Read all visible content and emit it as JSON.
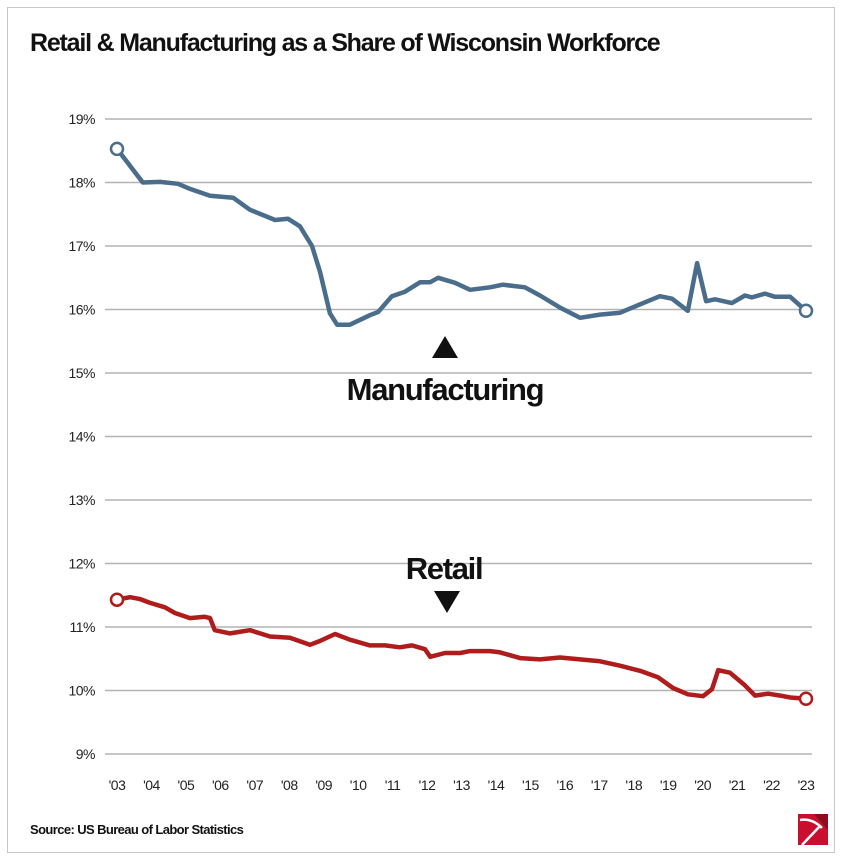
{
  "chart_data": {
    "type": "line",
    "title": "Retail & Manufacturing as a Share of Wisconsin Workforce",
    "source": "Source: US Bureau of Labor Statistics",
    "ylim": [
      9,
      19
    ],
    "xlim": [
      2003,
      2023
    ],
    "yticks": [
      "9%",
      "10%",
      "11%",
      "12%",
      "13%",
      "14%",
      "15%",
      "16%",
      "17%",
      "18%",
      "19%"
    ],
    "xticks": [
      "'03",
      "'04",
      "'05",
      "'06",
      "'07",
      "'08",
      "'09",
      "'10",
      "'11",
      "'12",
      "'13",
      "'14",
      "'15",
      "'16",
      "'17",
      "'18",
      "'19",
      "'20",
      "'21",
      "'22",
      "'23"
    ],
    "grid": "horizontal",
    "annotations": {
      "manufacturing": "Manufacturing",
      "retail": "Retail"
    },
    "series": [
      {
        "name": "Manufacturing",
        "color": "#4a6d8c",
        "x": [
          2003.0,
          2003.75,
          2004.25,
          2004.77,
          2005.12,
          2005.7,
          2006.37,
          2006.86,
          2007.59,
          2007.96,
          2008.31,
          2008.66,
          2008.89,
          2009.18,
          2009.39,
          2009.76,
          2010.34,
          2010.58,
          2010.98,
          2011.36,
          2011.8,
          2012.09,
          2012.32,
          2012.81,
          2013.25,
          2013.83,
          2014.2,
          2014.84,
          2015.28,
          2015.86,
          2016.44,
          2017.02,
          2017.6,
          2018.76,
          2019.11,
          2019.57,
          2019.84,
          2020.1,
          2020.36,
          2020.85,
          2021.23,
          2021.43,
          2021.81,
          2022.1,
          2022.54,
          2023.0
        ],
        "y": [
          18.53,
          18.0,
          18.01,
          17.98,
          17.9,
          17.79,
          17.76,
          17.57,
          17.41,
          17.43,
          17.31,
          17.0,
          16.6,
          15.94,
          15.76,
          15.76,
          15.91,
          15.96,
          16.21,
          16.28,
          16.43,
          16.43,
          16.5,
          16.42,
          16.31,
          16.35,
          16.39,
          16.35,
          16.22,
          16.03,
          15.87,
          15.92,
          15.95,
          16.21,
          16.17,
          15.98,
          16.73,
          16.13,
          16.16,
          16.1,
          16.22,
          16.19,
          16.25,
          16.2,
          16.2,
          15.98
        ]
      },
      {
        "name": "Retail",
        "color": "#b01c1c",
        "x": [
          2003.0,
          2003.38,
          2003.67,
          2003.96,
          2004.39,
          2004.68,
          2005.12,
          2005.55,
          2005.7,
          2005.84,
          2006.28,
          2006.86,
          2007.44,
          2008.02,
          2008.6,
          2008.89,
          2009.33,
          2009.76,
          2010.34,
          2010.78,
          2011.21,
          2011.56,
          2011.94,
          2012.09,
          2012.52,
          2012.96,
          2013.25,
          2013.83,
          2014.12,
          2014.7,
          2015.28,
          2015.86,
          2016.44,
          2017.02,
          2017.6,
          2018.18,
          2018.7,
          2019.14,
          2019.57,
          2020.01,
          2020.27,
          2020.45,
          2020.79,
          2021.23,
          2021.52,
          2021.9,
          2022.25,
          2022.54,
          2023.0
        ],
        "y": [
          11.43,
          11.47,
          11.44,
          11.38,
          11.31,
          11.22,
          11.14,
          11.16,
          11.14,
          10.95,
          10.9,
          10.95,
          10.85,
          10.83,
          10.72,
          10.78,
          10.89,
          10.8,
          10.71,
          10.71,
          10.68,
          10.71,
          10.65,
          10.53,
          10.59,
          10.59,
          10.62,
          10.62,
          10.6,
          10.51,
          10.49,
          10.52,
          10.49,
          10.46,
          10.39,
          10.31,
          10.21,
          10.04,
          9.94,
          9.91,
          10.02,
          10.32,
          10.28,
          10.08,
          9.92,
          9.95,
          9.92,
          9.89,
          9.87
        ]
      }
    ]
  }
}
